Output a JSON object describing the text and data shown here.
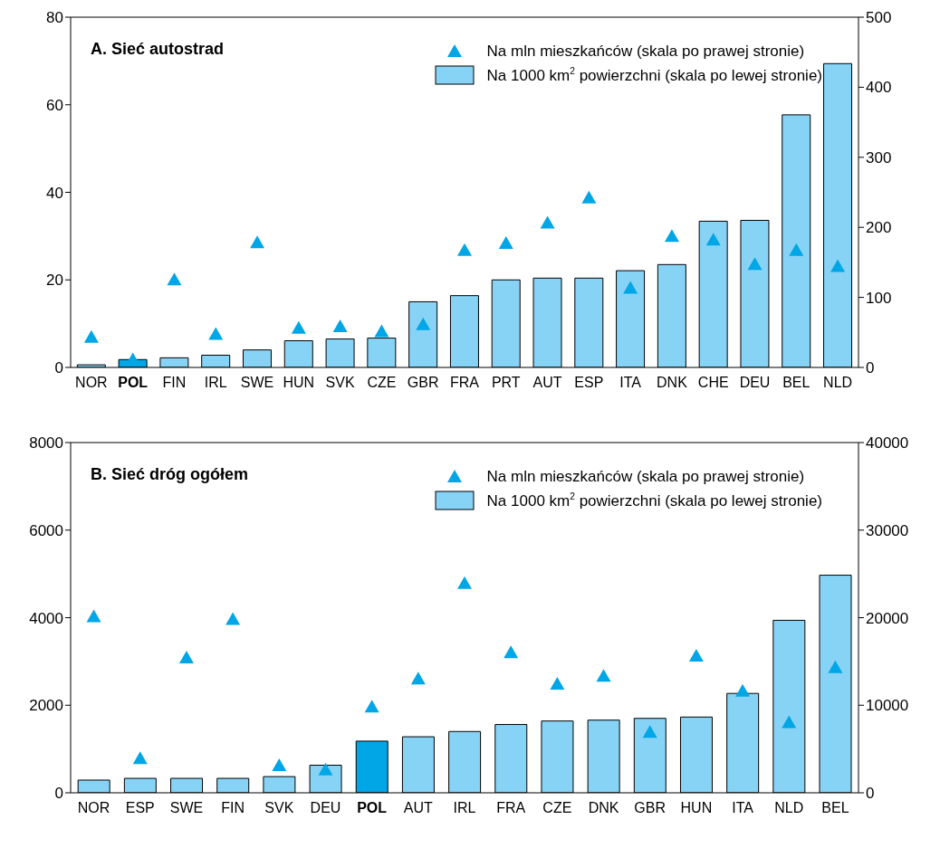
{
  "chart_data": [
    {
      "type": "bar",
      "title": "A. Sieć autostrad",
      "categories": [
        "NOR",
        "POL",
        "FIN",
        "IRL",
        "SWE",
        "HUN",
        "SVK",
        "CZE",
        "GBR",
        "FRA",
        "PRT",
        "AUT",
        "ESP",
        "ITA",
        "DNK",
        "CHE",
        "DEU",
        "BEL",
        "NLD"
      ],
      "series": [
        {
          "name": "Na mln mieszkańców (skala po prawej stronie)",
          "type": "scatter",
          "axis": "y2",
          "marker": "triangle",
          "color": "#00a6e6",
          "values": [
            43,
            11,
            125,
            47,
            178,
            56,
            58,
            51,
            61,
            167,
            177,
            206,
            242,
            113,
            187,
            182,
            147,
            167,
            144
          ]
        },
        {
          "name": "Na 1000 km$^{2}$ powierzchni (skala po lewej stronie)",
          "color": "#87d3f5",
          "colors": [
            "#87d3f5",
            "#00a6e6",
            "#87d3f5",
            "#87d3f5",
            "#87d3f5",
            "#87d3f5",
            "#87d3f5",
            "#87d3f5",
            "#87d3f5",
            "#87d3f5",
            "#87d3f5",
            "#87d3f5",
            "#87d3f5",
            "#87d3f5",
            "#87d3f5",
            "#87d3f5",
            "#87d3f5",
            "#87d3f5",
            "#87d3f5"
          ],
          "values": [
            0.6,
            1.8,
            2.2,
            2.8,
            4.0,
            6.1,
            6.5,
            6.7,
            15.0,
            16.4,
            20.0,
            20.4,
            20.4,
            22.1,
            23.5,
            33.4,
            33.6,
            57.7,
            69.4
          ]
        }
      ],
      "ylim": [
        0,
        80
      ],
      "yticks": [
        0,
        20,
        40,
        60,
        80
      ],
      "y2lim": [
        0,
        500
      ],
      "y2ticks": [
        0,
        100,
        200,
        300,
        400,
        500
      ],
      "legend": "top right",
      "grid": false
    },
    {
      "type": "bar",
      "title": "B. Sieć dróg ogółem",
      "categories": [
        "NOR",
        "ESP",
        "SWE",
        "FIN",
        "SVK",
        "DEU",
        "POL",
        "AUT",
        "IRL",
        "FRA",
        "CZE",
        "DNK",
        "GBR",
        "HUN",
        "ITA",
        "NLD",
        "BEL"
      ],
      "series": [
        {
          "name": "Na mln mieszkańców (skala po prawej stronie)",
          "type": "scatter",
          "axis": "y2",
          "marker": "triangle",
          "color": "#00a6e6",
          "values": [
            20100,
            3900,
            15400,
            19800,
            3100,
            2600,
            9800,
            13000,
            23900,
            16000,
            12400,
            13300,
            6900,
            15600,
            11600,
            8000,
            14300
          ]
        },
        {
          "name": "Na 1000 km$^{2}$ powierzchni (skala po lewej stronie)",
          "color": "#87d3f5",
          "colors": [
            "#87d3f5",
            "#87d3f5",
            "#87d3f5",
            "#87d3f5",
            "#87d3f5",
            "#87d3f5",
            "#00a6e6",
            "#87d3f5",
            "#87d3f5",
            "#87d3f5",
            "#87d3f5",
            "#87d3f5",
            "#87d3f5",
            "#87d3f5",
            "#87d3f5",
            "#87d3f5",
            "#87d3f5"
          ],
          "values": [
            290,
            330,
            330,
            330,
            370,
            630,
            1180,
            1280,
            1400,
            1560,
            1640,
            1660,
            1700,
            1730,
            2270,
            3940,
            4970
          ]
        }
      ],
      "ylim": [
        0,
        8000
      ],
      "yticks": [
        0,
        2000,
        4000,
        6000,
        8000
      ],
      "y2lim": [
        0,
        40000
      ],
      "y2ticks": [
        0,
        10000,
        20000,
        30000,
        40000
      ],
      "legend": "top right",
      "grid": false
    }
  ]
}
